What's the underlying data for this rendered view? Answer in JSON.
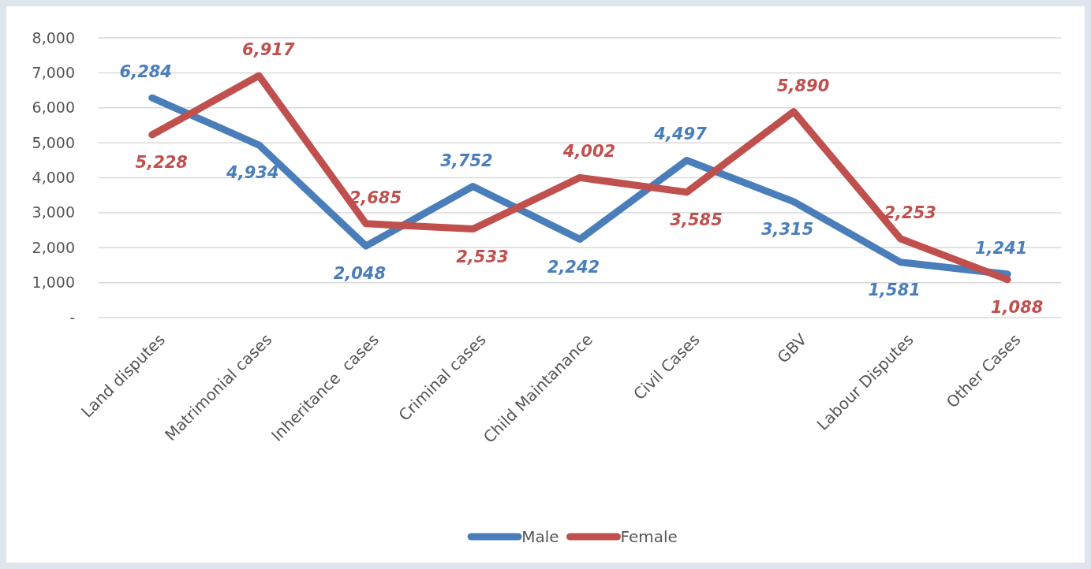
{
  "chart_data": {
    "type": "line",
    "categories": [
      "Land disputes",
      "Matrimonial cases",
      "Inheritance  cases",
      "Criminal cases",
      "Child Maintanance",
      "Civil Cases",
      "GBV",
      "Labour Disputes",
      "Other Cases"
    ],
    "series": [
      {
        "name": "Male",
        "color": "#4a7ebb",
        "values": [
          6284,
          4934,
          2048,
          3752,
          2242,
          4497,
          3315,
          1581,
          1241
        ],
        "value_labels": [
          "6,284",
          "4,934",
          "2,048",
          "3,752",
          "2,242",
          "4,497",
          "3,315",
          "1,581",
          "1,241"
        ]
      },
      {
        "name": "Female",
        "color": "#c0504d",
        "values": [
          5228,
          6917,
          2685,
          2533,
          4002,
          3585,
          5890,
          2253,
          1088
        ],
        "value_labels": [
          "5,228",
          "6,917",
          "2,685",
          "2,533",
          "4,002",
          "3,585",
          "5,890",
          "2,253",
          "1,088"
        ]
      }
    ],
    "ylim": [
      0,
      8000
    ],
    "yticks": [
      {
        "value": 0,
        "label": "-"
      },
      {
        "value": 1000,
        "label": "1,000"
      },
      {
        "value": 2000,
        "label": "2,000"
      },
      {
        "value": 3000,
        "label": "3,000"
      },
      {
        "value": 4000,
        "label": "4,000"
      },
      {
        "value": 5000,
        "label": "5,000"
      },
      {
        "value": 6000,
        "label": "6,000"
      },
      {
        "value": 7000,
        "label": "7,000"
      },
      {
        "value": 8000,
        "label": "8,000"
      }
    ],
    "grid": "y",
    "legend": "bottom",
    "marker": "none",
    "line_style": "solid"
  }
}
